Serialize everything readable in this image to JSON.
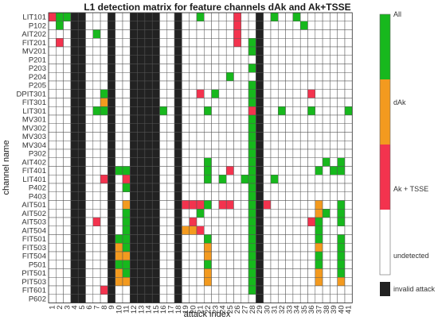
{
  "chart_data": {
    "type": "heatmap",
    "title": "L1 detection matrix for feature channels dAk and Ak+TSSE",
    "xlabel": "attack index",
    "ylabel": "channel name",
    "x": [
      1,
      2,
      3,
      4,
      5,
      6,
      7,
      8,
      9,
      10,
      11,
      12,
      13,
      14,
      15,
      16,
      17,
      18,
      19,
      20,
      21,
      22,
      23,
      24,
      25,
      26,
      27,
      28,
      29,
      30,
      31,
      32,
      33,
      34,
      35,
      36,
      37,
      38,
      39,
      40,
      41
    ],
    "y": [
      "LIT101",
      "P102",
      "AIT202",
      "FIT201",
      "MV201",
      "P201",
      "P203",
      "P204",
      "P205",
      "DPIT301",
      "FIT301",
      "LIT301",
      "MV301",
      "MV302",
      "MV303",
      "MV304",
      "P302",
      "AIT402",
      "FIT401",
      "LIT401",
      "P402",
      "P403",
      "AIT501",
      "AIT502",
      "AIT503",
      "AIT504",
      "FIT501",
      "FIT503",
      "FIT504",
      "P501",
      "PIT501",
      "PIT503",
      "FIT601",
      "P602"
    ],
    "invalid_attacks": [
      4,
      5,
      9,
      12,
      13,
      14,
      15,
      18,
      29
    ],
    "cells": {
      "LIT101": [
        [
          1,
          "ak_tsse"
        ],
        [
          2,
          "all"
        ],
        [
          3,
          "all"
        ],
        [
          21,
          "all"
        ],
        [
          26,
          "ak_tsse"
        ],
        [
          31,
          "all"
        ],
        [
          34,
          "all"
        ]
      ],
      "P102": [
        [
          2,
          "all"
        ],
        [
          26,
          "ak_tsse"
        ],
        [
          35,
          "all"
        ]
      ],
      "AIT202": [
        [
          7,
          "all"
        ],
        [
          26,
          "ak_tsse"
        ]
      ],
      "FIT201": [
        [
          2,
          "ak_tsse"
        ],
        [
          26,
          "ak_tsse"
        ],
        [
          28,
          "all"
        ]
      ],
      "MV201": [
        [
          28,
          "all"
        ]
      ],
      "P201": [],
      "P203": [
        [
          28,
          "all"
        ]
      ],
      "P204": [
        [
          25,
          "all"
        ]
      ],
      "P205": [
        [
          28,
          "all"
        ]
      ],
      "DPIT301": [
        [
          8,
          "all"
        ],
        [
          21,
          "ak_tsse"
        ],
        [
          23,
          "all"
        ],
        [
          28,
          "all"
        ],
        [
          36,
          "ak_tsse"
        ]
      ],
      "FIT301": [
        [
          8,
          "dak"
        ],
        [
          28,
          "all"
        ]
      ],
      "LIT301": [
        [
          7,
          "all"
        ],
        [
          8,
          "all"
        ],
        [
          16,
          "all"
        ],
        [
          22,
          "all"
        ],
        [
          28,
          "ak_tsse"
        ],
        [
          32,
          "all"
        ],
        [
          36,
          "all"
        ],
        [
          41,
          "all"
        ]
      ],
      "MV301": [
        [
          28,
          "all"
        ]
      ],
      "MV302": [
        [
          28,
          "all"
        ]
      ],
      "MV303": [
        [
          28,
          "all"
        ]
      ],
      "MV304": [
        [
          28,
          "all"
        ]
      ],
      "P302": [
        [
          28,
          "all"
        ]
      ],
      "AIT402": [
        [
          22,
          "all"
        ],
        [
          28,
          "all"
        ],
        [
          38,
          "all"
        ],
        [
          40,
          "all"
        ]
      ],
      "FIT401": [
        [
          10,
          "all"
        ],
        [
          11,
          "all"
        ],
        [
          22,
          "all"
        ],
        [
          25,
          "ak_tsse"
        ],
        [
          28,
          "all"
        ],
        [
          37,
          "all"
        ],
        [
          39,
          "all"
        ],
        [
          40,
          "all"
        ]
      ],
      "LIT401": [
        [
          8,
          "ak_tsse"
        ],
        [
          11,
          "ak_tsse"
        ],
        [
          22,
          "all"
        ],
        [
          24,
          "all"
        ],
        [
          27,
          "all"
        ],
        [
          28,
          "all"
        ],
        [
          31,
          "all"
        ]
      ],
      "P402": [
        [
          11,
          "all"
        ],
        [
          28,
          "all"
        ]
      ],
      "P403": [
        [
          28,
          "all"
        ]
      ],
      "AIT501": [
        [
          11,
          "dak"
        ],
        [
          19,
          "ak_tsse"
        ],
        [
          20,
          "ak_tsse"
        ],
        [
          21,
          "ak_tsse"
        ],
        [
          22,
          "all"
        ],
        [
          24,
          "ak_tsse"
        ],
        [
          25,
          "ak_tsse"
        ],
        [
          28,
          "all"
        ],
        [
          30,
          "ak_tsse"
        ],
        [
          37,
          "dak"
        ],
        [
          40,
          "all"
        ]
      ],
      "AIT502": [
        [
          11,
          "all"
        ],
        [
          21,
          "all"
        ],
        [
          28,
          "all"
        ],
        [
          37,
          "dak"
        ],
        [
          38,
          "all"
        ],
        [
          40,
          "all"
        ]
      ],
      "AIT503": [
        [
          7,
          "ak_tsse"
        ],
        [
          11,
          "all"
        ],
        [
          20,
          "ak_tsse"
        ],
        [
          28,
          "all"
        ],
        [
          36,
          "ak_tsse"
        ],
        [
          37,
          "all"
        ],
        [
          40,
          "all"
        ]
      ],
      "AIT504": [
        [
          11,
          "all"
        ],
        [
          19,
          "dak"
        ],
        [
          20,
          "dak"
        ],
        [
          21,
          "ak_tsse"
        ],
        [
          28,
          "all"
        ],
        [
          37,
          "all"
        ]
      ],
      "FIT501": [
        [
          10,
          "all"
        ],
        [
          11,
          "all"
        ],
        [
          22,
          "all"
        ],
        [
          28,
          "all"
        ],
        [
          37,
          "all"
        ],
        [
          40,
          "all"
        ]
      ],
      "FIT503": [
        [
          10,
          "dak"
        ],
        [
          11,
          "all"
        ],
        [
          22,
          "dak"
        ],
        [
          28,
          "all"
        ],
        [
          37,
          "dak"
        ],
        [
          40,
          "all"
        ]
      ],
      "FIT504": [
        [
          10,
          "dak"
        ],
        [
          11,
          "dak"
        ],
        [
          22,
          "dak"
        ],
        [
          28,
          "all"
        ],
        [
          37,
          "all"
        ],
        [
          40,
          "all"
        ]
      ],
      "P501": [
        [
          10,
          "all"
        ],
        [
          11,
          "all"
        ],
        [
          22,
          "all"
        ],
        [
          28,
          "all"
        ],
        [
          37,
          "all"
        ],
        [
          40,
          "all"
        ]
      ],
      "PIT501": [
        [
          10,
          "dak"
        ],
        [
          11,
          "all"
        ],
        [
          22,
          "dak"
        ],
        [
          28,
          "all"
        ],
        [
          37,
          "dak"
        ],
        [
          40,
          "all"
        ]
      ],
      "PIT503": [
        [
          10,
          "dak"
        ],
        [
          11,
          "dak"
        ],
        [
          22,
          "dak"
        ],
        [
          28,
          "all"
        ],
        [
          37,
          "dak"
        ],
        [
          40,
          "dak"
        ]
      ],
      "FIT601": [
        [
          8,
          "ak_tsse"
        ],
        [
          28,
          "all"
        ]
      ],
      "P602": []
    },
    "legend": [
      {
        "key": "all",
        "label": "All",
        "color": "#17b81d"
      },
      {
        "key": "dak",
        "label": "dAk",
        "color": "#f39a1f"
      },
      {
        "key": "ak_tsse",
        "label": "Ak + TSSE",
        "color": "#f3334e"
      },
      {
        "key": "undetected",
        "label": "undetected",
        "color": "#ffffff"
      }
    ],
    "invalid_label": "invalid attack",
    "invalid_color": "#222222",
    "grid": true,
    "legend_position": "right"
  }
}
